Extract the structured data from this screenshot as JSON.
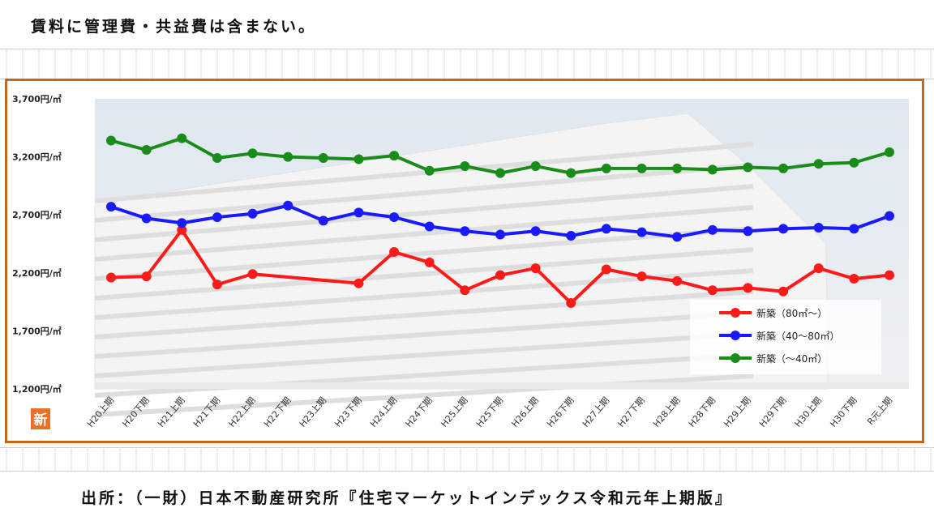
{
  "note": "賃料に管理費・共益費は含まない。",
  "source": "出所：（一財）日本不動産研究所『住宅マーケットインデックス令和元年上期版』",
  "badge": "新",
  "colors": {
    "frame": "#c5661a",
    "badge": "#e8702a"
  },
  "chart_data": {
    "type": "line",
    "title": "",
    "xlabel": "",
    "ylabel": "",
    "ylim": [
      1200,
      3700
    ],
    "yticks": [
      1200,
      1700,
      2200,
      2700,
      3200,
      3700
    ],
    "ytick_labels": [
      "1,200円/㎡",
      "1,700円/㎡",
      "2,200円/㎡",
      "2,700円/㎡",
      "3,200円/㎡",
      "3,700円/㎡"
    ],
    "categories": [
      "H20上期",
      "H20下期",
      "H21上期",
      "H21下期",
      "H22上期",
      "H22下期",
      "H23上期",
      "H23下期",
      "H24上期",
      "H24下期",
      "H25上期",
      "H25下期",
      "H26上期",
      "H26下期",
      "H27上期",
      "H27下期",
      "H28上期",
      "H28下期",
      "H29上期",
      "H29下期",
      "H30上期",
      "H30下期",
      "R元上期"
    ],
    "grid": false,
    "legend_position": "bottom-right",
    "series": [
      {
        "name": "新築（80㎡〜）",
        "color": "#ff1a1a",
        "values": [
          2160,
          2170,
          2570,
          2100,
          2190,
          null,
          null,
          2110,
          2380,
          2290,
          2050,
          2180,
          2240,
          1940,
          2230,
          2170,
          2130,
          2050,
          2070,
          2040,
          2240,
          2150,
          2180
        ]
      },
      {
        "name": "新築（40〜80㎡）",
        "color": "#1a1aff",
        "values": [
          2770,
          2670,
          2630,
          2680,
          2710,
          2780,
          2650,
          2720,
          2680,
          2600,
          2560,
          2530,
          2560,
          2520,
          2580,
          2550,
          2510,
          2570,
          2560,
          2580,
          2590,
          2580,
          2690
        ]
      },
      {
        "name": "新築（〜40㎡）",
        "color": "#1a8c1a",
        "values": [
          3340,
          3260,
          3360,
          3190,
          3230,
          3200,
          3190,
          3180,
          3210,
          3080,
          3120,
          3060,
          3120,
          3060,
          3100,
          3100,
          3100,
          3090,
          3110,
          3100,
          3140,
          3150,
          3240
        ]
      }
    ]
  }
}
